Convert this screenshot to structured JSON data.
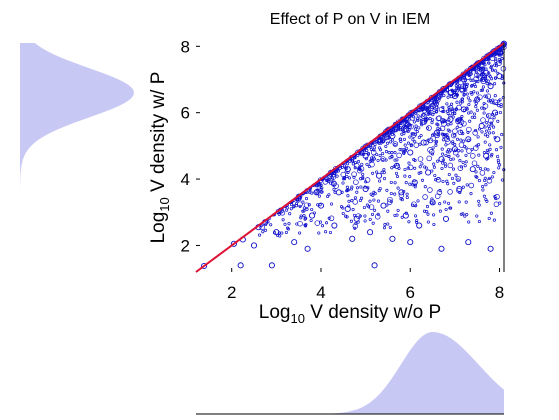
{
  "chart_data": {
    "type": "scatter",
    "title": "Effect of P on V in IEM",
    "xlabel": {
      "base": "Log",
      "sub": "10",
      "rest": " V density w/o P"
    },
    "ylabel": {
      "base": "Log",
      "sub": "10",
      "rest": " V density w/ P"
    },
    "xlim": [
      1.2,
      8.1
    ],
    "ylim": [
      1.2,
      8.1
    ],
    "xticks": [
      2,
      4,
      6,
      8
    ],
    "yticks": [
      2,
      4,
      6,
      8
    ],
    "grid": false,
    "marker": "open-circle",
    "colors": {
      "points": "#1010cc",
      "identity_line": "#dd1133",
      "marginal": "#c8c8f5",
      "axes": "#000000"
    },
    "identity_line": [
      [
        1.2,
        1.2
      ],
      [
        8.1,
        8.1
      ]
    ],
    "series_points": [
      [
        1.38,
        1.38
      ],
      [
        2.05,
        2.05
      ],
      [
        2.25,
        2.18
      ],
      [
        2.6,
        2.55
      ],
      [
        2.75,
        2.7
      ],
      [
        3.1,
        3.05
      ],
      [
        3.5,
        3.42
      ],
      [
        4.2,
        4.1
      ],
      [
        4.9,
        4.8
      ],
      [
        5.5,
        5.4
      ],
      [
        6.2,
        6.1
      ],
      [
        6.8,
        6.7
      ],
      [
        7.4,
        7.35
      ],
      [
        8.0,
        7.95
      ],
      [
        8.1,
        8.08
      ],
      [
        7.9,
        7.8
      ],
      [
        2.5,
        2.0
      ],
      [
        2.2,
        1.4
      ],
      [
        2.9,
        1.4
      ],
      [
        3.0,
        2.4
      ],
      [
        3.4,
        2.1
      ],
      [
        3.8,
        2.9
      ],
      [
        4.0,
        3.2
      ],
      [
        4.3,
        2.6
      ],
      [
        4.4,
        3.6
      ],
      [
        4.6,
        3.1
      ],
      [
        4.8,
        2.8
      ],
      [
        5.0,
        3.7
      ],
      [
        5.1,
        2.4
      ],
      [
        5.3,
        4.1
      ],
      [
        5.4,
        3.2
      ],
      [
        5.6,
        2.2
      ],
      [
        5.7,
        4.4
      ],
      [
        5.8,
        3.6
      ],
      [
        5.9,
        2.9
      ],
      [
        6.0,
        4.8
      ],
      [
        6.1,
        3.9
      ],
      [
        6.2,
        2.6
      ],
      [
        6.3,
        5.1
      ],
      [
        6.4,
        4.2
      ],
      [
        6.5,
        3.3
      ],
      [
        6.6,
        5.4
      ],
      [
        6.7,
        4.6
      ],
      [
        6.8,
        2.8
      ],
      [
        6.9,
        5.8
      ],
      [
        7.0,
        4.9
      ],
      [
        7.1,
        3.7
      ],
      [
        7.2,
        6.1
      ],
      [
        7.3,
        5.2
      ],
      [
        7.4,
        4.3
      ],
      [
        7.5,
        6.4
      ],
      [
        7.6,
        5.6
      ],
      [
        7.7,
        4.7
      ],
      [
        7.8,
        6.8
      ],
      [
        7.9,
        6.0
      ],
      [
        7.95,
        5.2
      ],
      [
        8.0,
        7.1
      ],
      [
        7.3,
        2.1
      ],
      [
        7.8,
        1.9
      ],
      [
        6.7,
        1.9
      ],
      [
        5.2,
        1.4
      ],
      [
        3.7,
        1.9
      ],
      [
        4.7,
        2.2
      ],
      [
        6.0,
        2.1
      ],
      [
        6.5,
        6.2
      ],
      [
        6.9,
        6.6
      ],
      [
        7.2,
        7.0
      ],
      [
        7.6,
        7.3
      ],
      [
        5.6,
        5.3
      ],
      [
        5.9,
        5.5
      ],
      [
        4.6,
        4.3
      ],
      [
        5.0,
        4.7
      ],
      [
        3.9,
        3.6
      ],
      [
        6.3,
        5.9
      ],
      [
        7.0,
        6.5
      ],
      [
        7.7,
        7.2
      ]
    ]
  }
}
